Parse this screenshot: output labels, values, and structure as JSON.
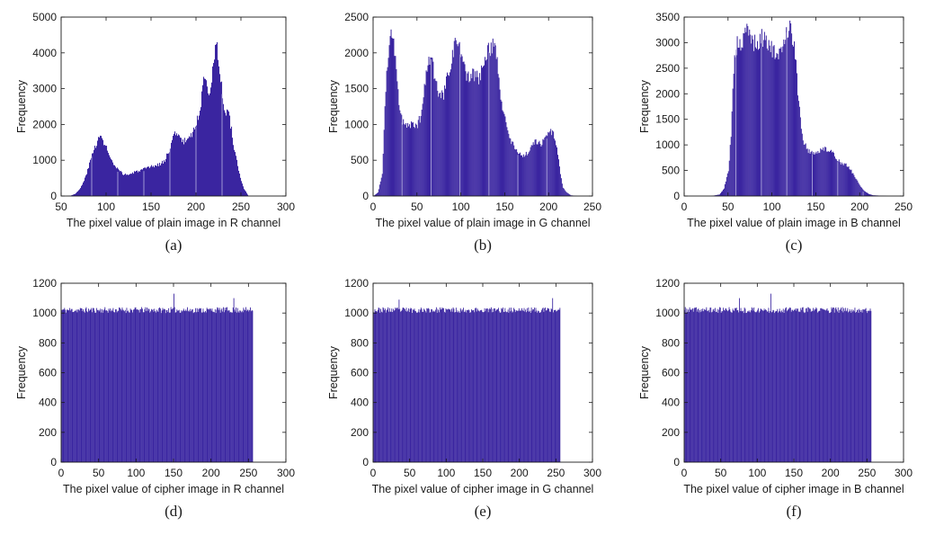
{
  "style": {
    "bar_color": "#3a25a0",
    "axis_color": "#1a1a1a"
  },
  "chart_data": [
    {
      "type": "bar",
      "caption": "(a)",
      "xlabel": "The pixel value of plain image in R channel",
      "ylabel": "Frequency",
      "xlim": [
        50,
        300
      ],
      "ylim": [
        0,
        5000
      ],
      "xticks": [
        50,
        100,
        150,
        200,
        250,
        300
      ],
      "yticks": [
        0,
        1000,
        2000,
        3000,
        4000,
        5000
      ],
      "x_start": 55,
      "x_end": 258,
      "profile": [
        [
          55,
          0
        ],
        [
          60,
          10
        ],
        [
          65,
          60
        ],
        [
          70,
          180
        ],
        [
          75,
          420
        ],
        [
          80,
          800
        ],
        [
          85,
          1250
        ],
        [
          90,
          1550
        ],
        [
          93,
          1650
        ],
        [
          95,
          1600
        ],
        [
          100,
          1350
        ],
        [
          105,
          1000
        ],
        [
          110,
          800
        ],
        [
          115,
          680
        ],
        [
          120,
          600
        ],
        [
          125,
          600
        ],
        [
          130,
          650
        ],
        [
          135,
          700
        ],
        [
          140,
          730
        ],
        [
          145,
          770
        ],
        [
          150,
          820
        ],
        [
          155,
          850
        ],
        [
          160,
          900
        ],
        [
          165,
          1000
        ],
        [
          170,
          1300
        ],
        [
          175,
          1700
        ],
        [
          178,
          1820
        ],
        [
          180,
          1700
        ],
        [
          185,
          1500
        ],
        [
          190,
          1600
        ],
        [
          195,
          1750
        ],
        [
          200,
          2000
        ],
        [
          205,
          2600
        ],
        [
          208,
          3200
        ],
        [
          210,
          3450
        ],
        [
          213,
          3000
        ],
        [
          215,
          2900
        ],
        [
          218,
          3600
        ],
        [
          221,
          4000
        ],
        [
          223,
          4100
        ],
        [
          226,
          3500
        ],
        [
          229,
          2900
        ],
        [
          232,
          2200
        ],
        [
          235,
          2500
        ],
        [
          238,
          2000
        ],
        [
          241,
          1500
        ],
        [
          244,
          1100
        ],
        [
          247,
          700
        ],
        [
          250,
          400
        ],
        [
          253,
          200
        ],
        [
          256,
          80
        ],
        [
          258,
          0
        ]
      ]
    },
    {
      "type": "bar",
      "caption": "(b)",
      "xlabel": "The pixel value of plain image in G channel",
      "ylabel": "Frequency",
      "xlim": [
        0,
        250
      ],
      "ylim": [
        0,
        2500
      ],
      "xticks": [
        0,
        50,
        100,
        150,
        200,
        250
      ],
      "yticks": [
        0,
        500,
        1000,
        1500,
        2000,
        2500
      ],
      "x_start": 0,
      "x_end": 232,
      "profile": [
        [
          0,
          0
        ],
        [
          5,
          50
        ],
        [
          10,
          300
        ],
        [
          13,
          1200
        ],
        [
          15,
          1700
        ],
        [
          18,
          2050
        ],
        [
          20,
          2200
        ],
        [
          22,
          2240
        ],
        [
          25,
          1900
        ],
        [
          28,
          1500
        ],
        [
          30,
          1200
        ],
        [
          33,
          1050
        ],
        [
          35,
          1020
        ],
        [
          40,
          1000
        ],
        [
          45,
          980
        ],
        [
          50,
          1000
        ],
        [
          55,
          1150
        ],
        [
          60,
          1700
        ],
        [
          63,
          1900
        ],
        [
          65,
          2000
        ],
        [
          68,
          1800
        ],
        [
          70,
          1650
        ],
        [
          73,
          1450
        ],
        [
          75,
          1400
        ],
        [
          80,
          1400
        ],
        [
          85,
          1700
        ],
        [
          90,
          2000
        ],
        [
          93,
          2100
        ],
        [
          95,
          2160
        ],
        [
          98,
          2050
        ],
        [
          100,
          1950
        ],
        [
          105,
          1700
        ],
        [
          110,
          1650
        ],
        [
          115,
          1700
        ],
        [
          120,
          1650
        ],
        [
          125,
          1800
        ],
        [
          130,
          2000
        ],
        [
          135,
          2100
        ],
        [
          138,
          2150
        ],
        [
          140,
          2000
        ],
        [
          145,
          1300
        ],
        [
          150,
          1100
        ],
        [
          155,
          800
        ],
        [
          160,
          700
        ],
        [
          165,
          600
        ],
        [
          170,
          550
        ],
        [
          175,
          600
        ],
        [
          180,
          700
        ],
        [
          185,
          780
        ],
        [
          190,
          720
        ],
        [
          195,
          780
        ],
        [
          200,
          860
        ],
        [
          203,
          900
        ],
        [
          205,
          850
        ],
        [
          210,
          600
        ],
        [
          213,
          300
        ],
        [
          216,
          120
        ],
        [
          220,
          50
        ],
        [
          225,
          10
        ],
        [
          232,
          0
        ]
      ]
    },
    {
      "type": "bar",
      "caption": "(c)",
      "xlabel": "The pixel value of plain image in B channel",
      "ylabel": "Frequency",
      "xlim": [
        0,
        250
      ],
      "ylim": [
        0,
        3500
      ],
      "xticks": [
        0,
        50,
        100,
        150,
        200,
        250
      ],
      "yticks": [
        0,
        500,
        1000,
        1500,
        2000,
        2500,
        3000,
        3500
      ],
      "x_start": 30,
      "x_end": 232,
      "profile": [
        [
          30,
          0
        ],
        [
          40,
          30
        ],
        [
          45,
          150
        ],
        [
          50,
          500
        ],
        [
          53,
          1200
        ],
        [
          55,
          2200
        ],
        [
          58,
          2800
        ],
        [
          60,
          3000
        ],
        [
          63,
          2900
        ],
        [
          65,
          2950
        ],
        [
          68,
          3100
        ],
        [
          71,
          3250
        ],
        [
          73,
          3280
        ],
        [
          76,
          3050
        ],
        [
          80,
          3000
        ],
        [
          83,
          2900
        ],
        [
          86,
          3050
        ],
        [
          89,
          3100
        ],
        [
          92,
          3120
        ],
        [
          95,
          3000
        ],
        [
          98,
          2900
        ],
        [
          101,
          2850
        ],
        [
          104,
          2700
        ],
        [
          107,
          2650
        ],
        [
          110,
          2900
        ],
        [
          113,
          3050
        ],
        [
          116,
          3200
        ],
        [
          119,
          3300
        ],
        [
          121,
          3320
        ],
        [
          124,
          3000
        ],
        [
          127,
          2600
        ],
        [
          130,
          1800
        ],
        [
          135,
          1100
        ],
        [
          140,
          900
        ],
        [
          145,
          850
        ],
        [
          150,
          850
        ],
        [
          155,
          880
        ],
        [
          160,
          950
        ],
        [
          165,
          880
        ],
        [
          170,
          820
        ],
        [
          175,
          700
        ],
        [
          180,
          620
        ],
        [
          185,
          600
        ],
        [
          190,
          500
        ],
        [
          195,
          350
        ],
        [
          200,
          200
        ],
        [
          205,
          100
        ],
        [
          210,
          40
        ],
        [
          215,
          15
        ],
        [
          232,
          0
        ]
      ]
    },
    {
      "type": "bar",
      "caption": "(d)",
      "xlabel": "The pixel value of cipher image in R channel",
      "ylabel": "Frequency",
      "xlim": [
        0,
        300
      ],
      "ylim": [
        0,
        1200
      ],
      "xticks": [
        0,
        50,
        100,
        150,
        200,
        250,
        300
      ],
      "yticks": [
        0,
        200,
        400,
        600,
        800,
        1000,
        1200
      ],
      "x_start": 0,
      "x_end": 255,
      "base": 1020,
      "noise": 40,
      "seed": 11,
      "spikes": [
        [
          150,
          1130
        ],
        [
          230,
          1100
        ]
      ]
    },
    {
      "type": "bar",
      "caption": "(e)",
      "xlabel": "The pixel value of cipher image in G channel",
      "ylabel": "Frequency",
      "xlim": [
        0,
        300
      ],
      "ylim": [
        0,
        1200
      ],
      "xticks": [
        0,
        50,
        100,
        150,
        200,
        250,
        300
      ],
      "yticks": [
        0,
        200,
        400,
        600,
        800,
        1000,
        1200
      ],
      "x_start": 0,
      "x_end": 255,
      "base": 1020,
      "noise": 38,
      "seed": 23,
      "spikes": [
        [
          245,
          1100
        ],
        [
          35,
          1090
        ]
      ]
    },
    {
      "type": "bar",
      "caption": "(f)",
      "xlabel": "The pixel value of cipher image in B channel",
      "ylabel": "Frequency",
      "xlim": [
        0,
        300
      ],
      "ylim": [
        0,
        1200
      ],
      "xticks": [
        0,
        50,
        100,
        150,
        200,
        250,
        300
      ],
      "yticks": [
        0,
        200,
        400,
        600,
        800,
        1000,
        1200
      ],
      "x_start": 0,
      "x_end": 255,
      "base": 1020,
      "noise": 40,
      "seed": 37,
      "spikes": [
        [
          118,
          1130
        ],
        [
          75,
          1100
        ]
      ]
    }
  ]
}
